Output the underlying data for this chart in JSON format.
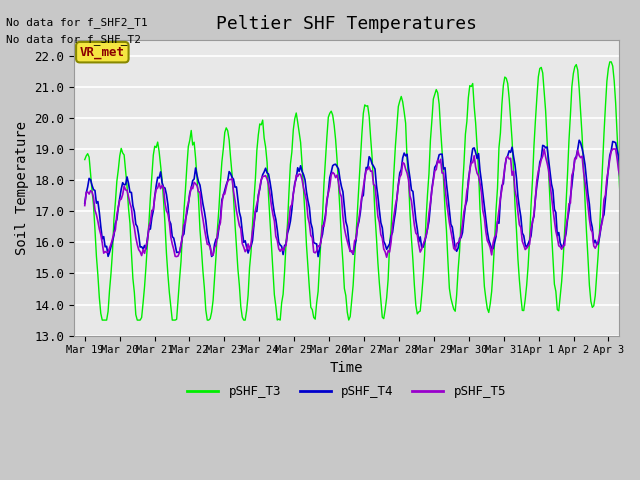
{
  "title": "Peltier SHF Temperatures",
  "xlabel": "Time",
  "ylabel": "Soil Temperature",
  "ylim": [
    13.0,
    22.5
  ],
  "yticks": [
    13.0,
    14.0,
    15.0,
    16.0,
    17.0,
    18.0,
    19.0,
    20.0,
    21.0,
    22.0
  ],
  "annotations_top_left": [
    "No data for f_SHF2_T1",
    "No data for f_SHF_T2"
  ],
  "vr_met_label": "VR_met",
  "legend_labels": [
    "pSHF_T3",
    "pSHF_T4",
    "pSHF_T5"
  ],
  "line_colors": [
    "#00ee00",
    "#0000cc",
    "#9900cc"
  ],
  "xtick_positions": [
    0,
    1,
    2,
    3,
    4,
    5,
    6,
    7,
    8,
    9,
    10,
    11,
    12,
    13,
    14,
    15
  ],
  "xtick_labels": [
    "Mar 19",
    "Mar 20",
    "Mar 21",
    "Mar 22",
    "Mar 23",
    "Mar 24",
    "Mar 25",
    "Mar 26",
    "Mar 27",
    "Mar 28",
    "Mar 29",
    "Mar 30",
    "Mar 31",
    "Apr 1",
    "Apr 2",
    "Apr 3"
  ],
  "n_days": 16,
  "n_points_per_day": 24
}
